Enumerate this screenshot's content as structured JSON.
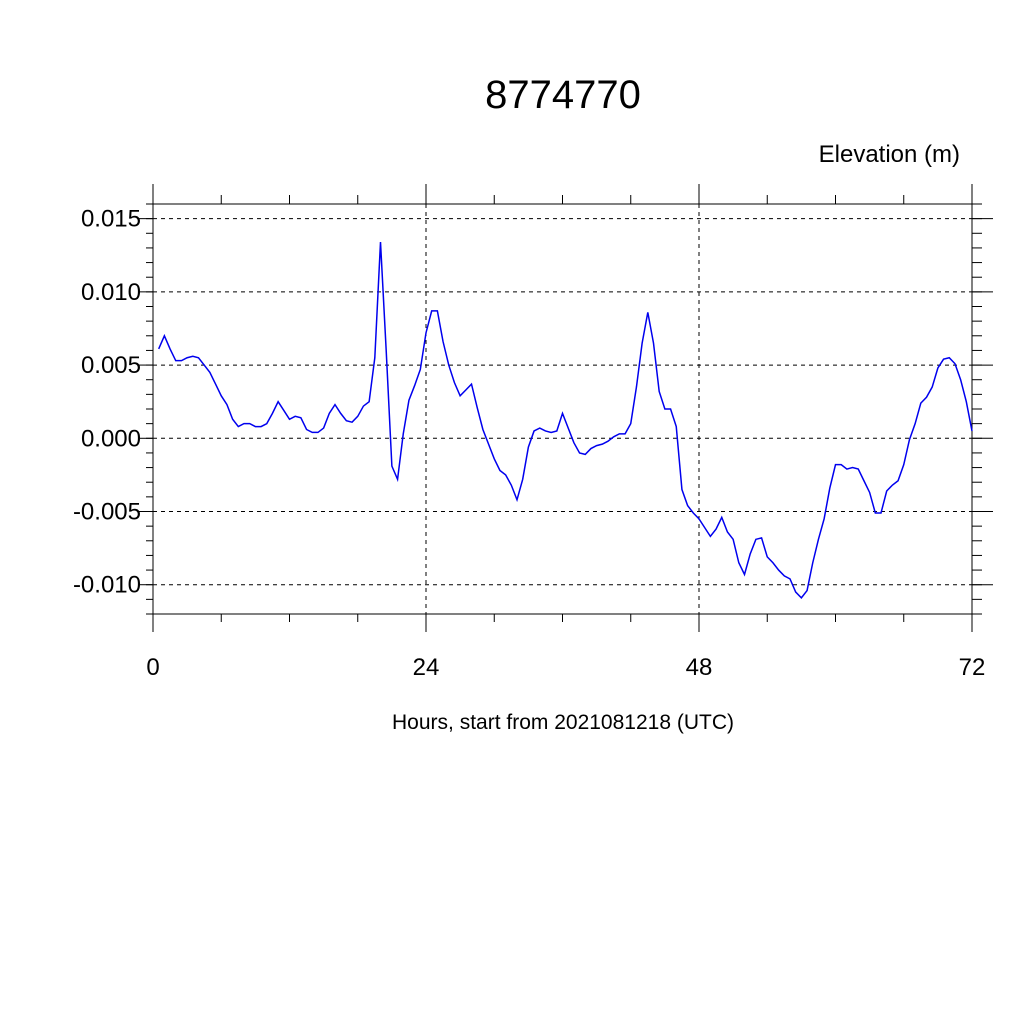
{
  "chart_data": {
    "type": "line",
    "title": "8774770",
    "ylabel": "Elevation (m)",
    "xlabel": "Hours, start from 2021081218 (UTC)",
    "xlim": [
      0,
      72
    ],
    "ylim": [
      -0.012,
      0.016
    ],
    "xticks": [
      0,
      24,
      48,
      72
    ],
    "xtick_labels": [
      "0",
      "24",
      "48",
      "72"
    ],
    "yticks": [
      -0.01,
      -0.005,
      0.0,
      0.005,
      0.01,
      0.015
    ],
    "ytick_labels": [
      "-0.010",
      "-0.005",
      "0.000",
      "0.005",
      "0.010",
      "0.015"
    ],
    "grid": true,
    "line_color": "#0000ee",
    "series": [
      {
        "x": [
          0.5,
          1,
          1.5,
          2,
          2.5,
          3,
          3.5,
          4,
          4.5,
          5,
          5.5,
          6,
          6.5,
          7,
          7.5,
          8,
          8.5,
          9,
          9.5,
          10,
          10.5,
          11,
          11.5,
          12,
          12.5,
          13,
          13.5,
          14,
          14.5,
          15,
          15.5,
          16,
          16.5,
          17,
          17.5,
          18,
          18.5,
          19,
          19.5,
          20,
          20.5,
          21,
          21.5,
          22,
          22.5,
          23,
          23.5,
          24,
          24.5,
          25,
          25.5,
          26,
          26.5,
          27,
          27.5,
          28,
          28.5,
          29,
          29.5,
          30,
          30.5,
          31,
          31.5,
          32,
          32.5,
          33,
          33.5,
          34,
          34.5,
          35,
          35.5,
          36,
          36.5,
          37,
          37.5,
          38,
          38.5,
          39,
          39.5,
          40,
          40.5,
          41,
          41.5,
          42,
          42.5,
          43,
          43.5,
          44,
          44.5,
          45,
          45.5,
          46,
          46.5,
          47,
          47.5,
          48,
          48.5,
          49,
          49.5,
          50,
          50.5,
          51,
          51.5,
          52,
          52.5,
          53,
          53.5,
          54,
          54.5,
          55,
          55.5,
          56,
          56.5,
          57,
          57.5,
          58,
          58.5,
          59,
          59.5,
          60,
          60.5,
          61,
          61.5,
          62,
          62.5,
          63,
          63.5,
          64,
          64.5,
          65,
          65.5,
          66,
          66.5,
          67,
          67.5,
          68,
          68.5,
          69,
          69.5,
          70,
          70.5,
          71,
          71.5,
          72
        ],
        "y": [
          0.0061,
          0.007,
          0.0061,
          0.0053,
          0.0053,
          0.0055,
          0.0056,
          0.0055,
          0.005,
          0.0045,
          0.0037,
          0.0029,
          0.0023,
          0.0013,
          0.0008,
          0.001,
          0.001,
          0.0008,
          0.0008,
          0.001,
          0.0017,
          0.0025,
          0.0019,
          0.0013,
          0.0015,
          0.0014,
          0.0006,
          0.0004,
          0.0004,
          0.0007,
          0.0017,
          0.0023,
          0.0017,
          0.0012,
          0.0011,
          0.0015,
          0.0022,
          0.0025,
          0.0055,
          0.0134,
          0.006,
          -0.0019,
          -0.0028,
          0.0003,
          0.0026,
          0.0036,
          0.0047,
          0.0072,
          0.0087,
          0.0087,
          0.0066,
          0.005,
          0.0038,
          0.0029,
          0.0033,
          0.0037,
          0.0021,
          0.0006,
          -0.0004,
          -0.0014,
          -0.0022,
          -0.0025,
          -0.0032,
          -0.0042,
          -0.0028,
          -0.0006,
          0.0005,
          0.0007,
          0.0005,
          0.0004,
          0.0005,
          0.0017,
          0.0007,
          -0.0003,
          -0.001,
          -0.0011,
          -0.0007,
          -0.0005,
          -0.0004,
          -0.0002,
          0.0001,
          0.0003,
          0.0003,
          0.001,
          0.0035,
          0.0065,
          0.0086,
          0.0065,
          0.0032,
          0.002,
          0.002,
          0.0008,
          -0.0035,
          -0.0046,
          -0.0051,
          -0.0055,
          -0.0061,
          -0.0067,
          -0.0062,
          -0.0054,
          -0.0064,
          -0.0069,
          -0.0085,
          -0.0093,
          -0.0079,
          -0.0069,
          -0.0068,
          -0.0081,
          -0.0085,
          -0.009,
          -0.0094,
          -0.0096,
          -0.0105,
          -0.0109,
          -0.0104,
          -0.0085,
          -0.0069,
          -0.0055,
          -0.0034,
          -0.0018,
          -0.0018,
          -0.0021,
          -0.002,
          -0.0021,
          -0.0029,
          -0.0037,
          -0.0051,
          -0.0051,
          -0.0036,
          -0.0032,
          -0.0029,
          -0.0018,
          -0.0001,
          0.001,
          0.0024,
          0.0028,
          0.0035,
          0.0048,
          0.0054,
          0.0055,
          0.0051,
          0.004,
          0.0025,
          0.0005
        ]
      }
    ]
  }
}
